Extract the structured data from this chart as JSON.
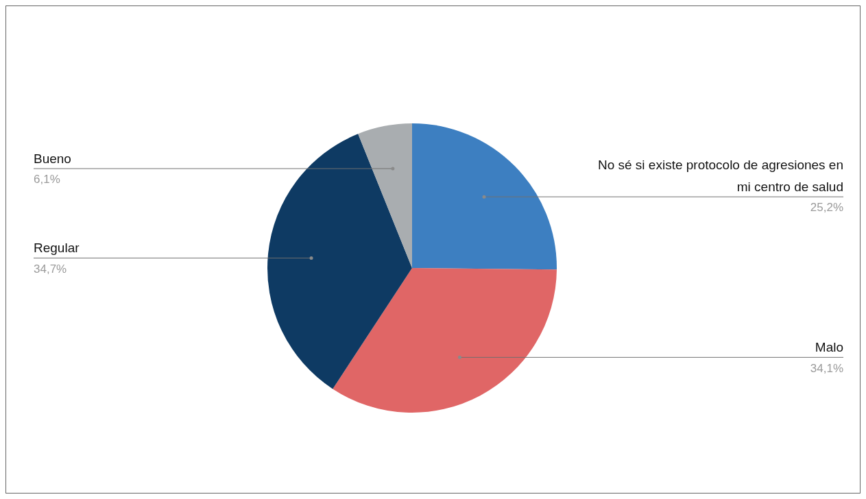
{
  "chart_data": {
    "type": "pie",
    "categories": [
      "No sé si existe protocolo de agresiones en mi centro de salud",
      "Malo",
      "Regular",
      "Bueno"
    ],
    "values": [
      25.2,
      34.1,
      34.7,
      6.1
    ],
    "colors": [
      "#3d7fc1",
      "#e06666",
      "#0e3a63",
      "#a9adb0"
    ],
    "value_labels": [
      "25,2%",
      "34,1%",
      "34,7%",
      "6,1%"
    ]
  }
}
